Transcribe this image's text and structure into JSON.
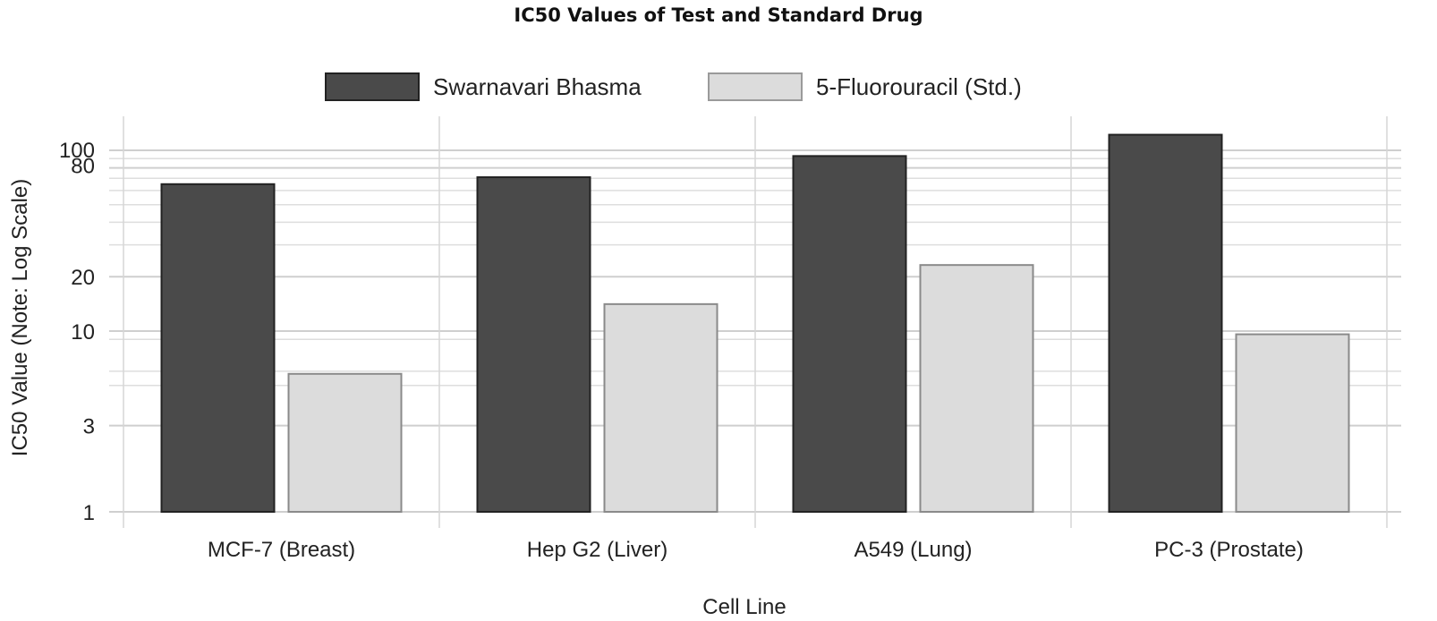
{
  "chart_data": {
    "type": "bar",
    "title": "IC50 Values of Test and Standard Drug",
    "xlabel": "Cell Line",
    "ylabel": "IC50 Value (Note: Log Scale)",
    "yscale": "log",
    "ylim": [
      1,
      140
    ],
    "yticks": [
      1,
      3,
      10,
      20,
      80,
      100
    ],
    "yminor": [
      5,
      6,
      9,
      30,
      40,
      50,
      60,
      70,
      90
    ],
    "categories": [
      "MCF-7 (Breast)",
      "Hep G2 (Liver)",
      "A549 (Lung)",
      "PC-3 (Prostate)"
    ],
    "series": [
      {
        "name": "Swarnavari Bhasma",
        "values": [
          65,
          71,
          93,
          122
        ],
        "color": "#4a4a4a"
      },
      {
        "name": "5-Fluorouracil (Std.)",
        "values": [
          5.8,
          14.1,
          23.2,
          9.6
        ],
        "color": "#dcdcdc"
      }
    ],
    "legend_position": "top-center",
    "grid": true
  }
}
